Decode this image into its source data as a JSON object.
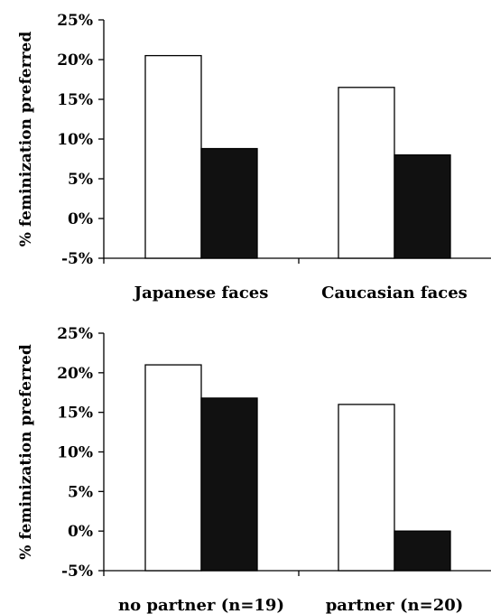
{
  "chart_data": [
    {
      "type": "bar",
      "categories": [
        "Japanese faces",
        "Caucasian faces"
      ],
      "series": [
        {
          "values": [
            20.5,
            16.5
          ],
          "color": "#ffffff"
        },
        {
          "values": [
            8.8,
            8.0
          ],
          "color": "#111111"
        }
      ],
      "ylabel": "% feminization preferred",
      "ylim": [
        -5,
        25
      ],
      "yticks": [
        -5,
        0,
        5,
        10,
        15,
        20,
        25
      ],
      "ytick_labels": [
        "-5%",
        "0%",
        "5%",
        "10%",
        "15%",
        "20%",
        "25%"
      ],
      "grid": false,
      "legend": "none"
    },
    {
      "type": "bar",
      "categories": [
        "no partner (n=19)",
        "partner (n=20)"
      ],
      "series": [
        {
          "values": [
            21.0,
            16.0
          ],
          "color": "#ffffff"
        },
        {
          "values": [
            16.8,
            0.0
          ],
          "color": "#111111"
        }
      ],
      "ylabel": "% feminization preferred",
      "ylim": [
        -5,
        25
      ],
      "yticks": [
        -5,
        0,
        5,
        10,
        15,
        20,
        25
      ],
      "ytick_labels": [
        "-5%",
        "0%",
        "5%",
        "10%",
        "15%",
        "20%",
        "25%"
      ],
      "grid": false,
      "legend": "none"
    }
  ]
}
